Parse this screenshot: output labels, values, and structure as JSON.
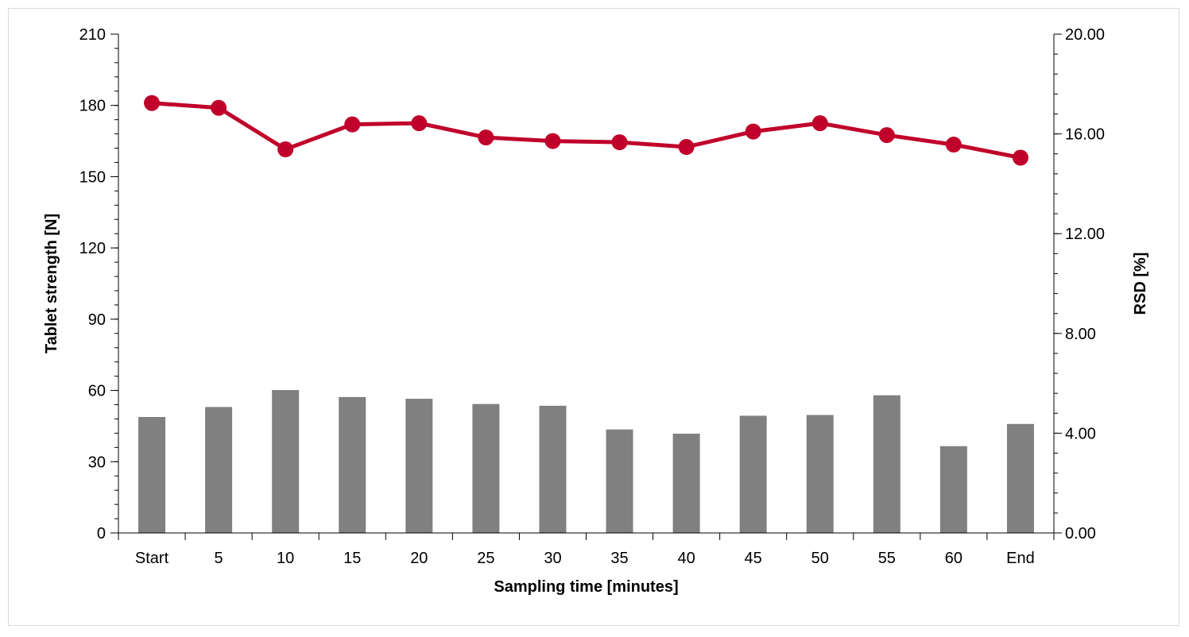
{
  "chart_data": {
    "type": "bar+line",
    "title": "",
    "xlabel": "Sampling time [minutes]",
    "ylabel_left": "Tablet strength [N]",
    "ylabel_right": "RSD [%]",
    "categories": [
      "Start",
      "5",
      "10",
      "15",
      "20",
      "25",
      "30",
      "35",
      "40",
      "45",
      "50",
      "55",
      "60",
      "End"
    ],
    "y_left": {
      "min": 0,
      "max": 210,
      "major_step": 30,
      "minor_step": 6,
      "tick_labels": [
        "0",
        "30",
        "60",
        "90",
        "120",
        "150",
        "180",
        "210"
      ]
    },
    "y_right": {
      "min": 0,
      "max": 20,
      "major_step": 4,
      "minor_step": 0.8,
      "tick_labels": [
        "0.00",
        "4.00",
        "8.00",
        "12.00",
        "16.00",
        "20.00"
      ]
    },
    "grid": false,
    "legend": "none",
    "series": [
      {
        "kind": "line",
        "axis": "left",
        "color": "#c0002a",
        "marker": "circle",
        "values": [
          181,
          179,
          161.5,
          172,
          172.5,
          166.5,
          165,
          164.5,
          162.5,
          169,
          172.5,
          167.5,
          163.5,
          158
        ]
      },
      {
        "kind": "bar",
        "axis": "right",
        "color": "#808080",
        "values": [
          4.65,
          5.05,
          5.73,
          5.45,
          5.38,
          5.17,
          5.1,
          4.15,
          3.98,
          4.7,
          4.73,
          5.52,
          3.48,
          4.37
        ]
      }
    ]
  }
}
